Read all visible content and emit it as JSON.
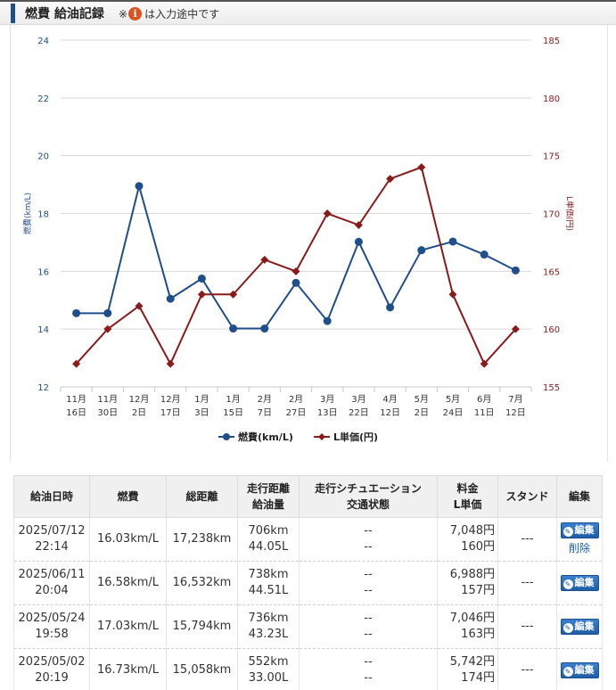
{
  "header": {
    "title": "燃費 給油記録",
    "note_prefix": "※",
    "info_icon": "i",
    "note_suffix": "は入力途中です"
  },
  "chart_data": {
    "type": "line",
    "categories": [
      [
        "11月",
        "16日"
      ],
      [
        "11月",
        "30日"
      ],
      [
        "12月",
        "2日"
      ],
      [
        "12月",
        "17日"
      ],
      [
        "1月",
        "3日"
      ],
      [
        "1月",
        "15日"
      ],
      [
        "2月",
        "7日"
      ],
      [
        "2月",
        "27日"
      ],
      [
        "3月",
        "13日"
      ],
      [
        "3月",
        "22日"
      ],
      [
        "4月",
        "12日"
      ],
      [
        "5月",
        "2日"
      ],
      [
        "5月",
        "24日"
      ],
      [
        "6月",
        "11日"
      ],
      [
        "7月",
        "12日"
      ]
    ],
    "series": [
      {
        "name": "燃費(km/L)",
        "axis": "left",
        "color": "#1f4e8c",
        "marker": "circle",
        "values": [
          14.55,
          14.55,
          18.95,
          15.05,
          15.75,
          14.02,
          14.02,
          15.6,
          14.28,
          17.02,
          14.75,
          16.73,
          17.03,
          16.58,
          16.03
        ]
      },
      {
        "name": "L単価(円)",
        "axis": "right",
        "color": "#8b1a1a",
        "marker": "diamond",
        "values": [
          157,
          160,
          162,
          157,
          163,
          163,
          166,
          165,
          170,
          169,
          173,
          174,
          163,
          157,
          160
        ]
      }
    ],
    "yleft": {
      "label": "燃費(km/L)",
      "ylim": [
        12,
        24
      ],
      "ticks": [
        "12",
        "14",
        "16",
        "18",
        "20",
        "22",
        "24"
      ]
    },
    "yright": {
      "label": "L単価(円)",
      "ylim": [
        155,
        185
      ],
      "ticks": [
        "155",
        "160",
        "165",
        "170",
        "175",
        "180",
        "185"
      ]
    },
    "grid": true,
    "legend_position": "bottom"
  },
  "table": {
    "headers": [
      [
        "給油日時"
      ],
      [
        "燃費"
      ],
      [
        "総距離"
      ],
      [
        "走行距離",
        "給油量"
      ],
      [
        "走行シチュエーション",
        "交通状態"
      ],
      [
        "料金",
        "L単価"
      ],
      [
        "スタンド"
      ],
      [
        "編集"
      ]
    ],
    "edit_label": "編集",
    "delete_label": "削除",
    "rows": [
      {
        "date": "2025/07/12",
        "time": "22:14",
        "efficiency": "16.03km/L",
        "total": "17,238km",
        "distance": "706km",
        "fuel": "44.05L",
        "situation": "--",
        "traffic": "--",
        "cost": "7,048円",
        "unit": "160円",
        "stand": "---",
        "deletable": true
      },
      {
        "date": "2025/06/11",
        "time": "20:04",
        "efficiency": "16.58km/L",
        "total": "16,532km",
        "distance": "738km",
        "fuel": "44.51L",
        "situation": "--",
        "traffic": "--",
        "cost": "6,988円",
        "unit": "157円",
        "stand": "---",
        "deletable": false
      },
      {
        "date": "2025/05/24",
        "time": "19:58",
        "efficiency": "17.03km/L",
        "total": "15,794km",
        "distance": "736km",
        "fuel": "43.23L",
        "situation": "--",
        "traffic": "--",
        "cost": "7,046円",
        "unit": "163円",
        "stand": "---",
        "deletable": false
      },
      {
        "date": "2025/05/02",
        "time": "20:19",
        "efficiency": "16.73km/L",
        "total": "15,058km",
        "distance": "552km",
        "fuel": "33.00L",
        "situation": "--",
        "traffic": "--",
        "cost": "5,742円",
        "unit": "174円",
        "stand": "---",
        "deletable": false
      }
    ]
  }
}
